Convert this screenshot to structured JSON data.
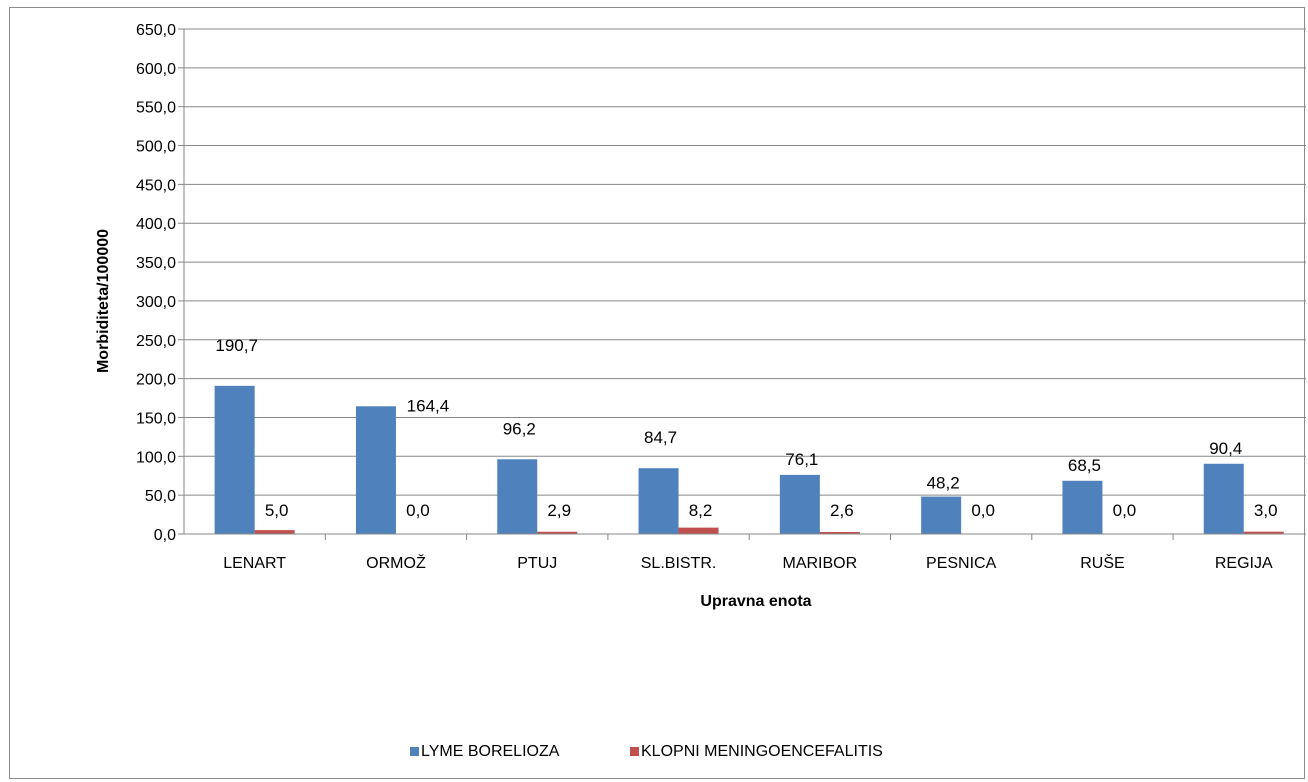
{
  "chart_data": {
    "type": "bar",
    "title": "",
    "xlabel": "Upravna enota",
    "ylabel": "Morbiditeta/100000",
    "ylim": [
      0,
      650
    ],
    "ytick_step": 50,
    "ytick_labels": [
      "0,0",
      "50,0",
      "100,0",
      "150,0",
      "200,0",
      "250,0",
      "300,0",
      "350,0",
      "400,0",
      "450,0",
      "500,0",
      "550,0",
      "600,0",
      "650,0"
    ],
    "grid": true,
    "legend_position": "bottom",
    "categories": [
      "LENART",
      "ORMOŽ",
      "PTUJ",
      "SL.BISTR.",
      "MARIBOR",
      "PESNICA",
      "RUŠE",
      "REGIJA"
    ],
    "series": [
      {
        "name": "LYME BORELIOZA",
        "color": "#4f81bd",
        "values": [
          190.7,
          164.4,
          96.2,
          84.7,
          76.1,
          48.2,
          68.5,
          90.4
        ],
        "labels": [
          "190,7",
          "164,4",
          "96,2",
          "84,7",
          "76,1",
          "48,2",
          "68,5",
          "90,4"
        ]
      },
      {
        "name": "KLOPNI MENINGOENCEFALITIS",
        "color": "#c0504d",
        "values": [
          5.0,
          0.0,
          2.9,
          8.2,
          2.6,
          0.0,
          0.0,
          3.0
        ],
        "labels": [
          "5,0",
          "0,0",
          "2,9",
          "8,2",
          "2,6",
          "0,0",
          "0,0",
          "3,0"
        ]
      }
    ]
  }
}
